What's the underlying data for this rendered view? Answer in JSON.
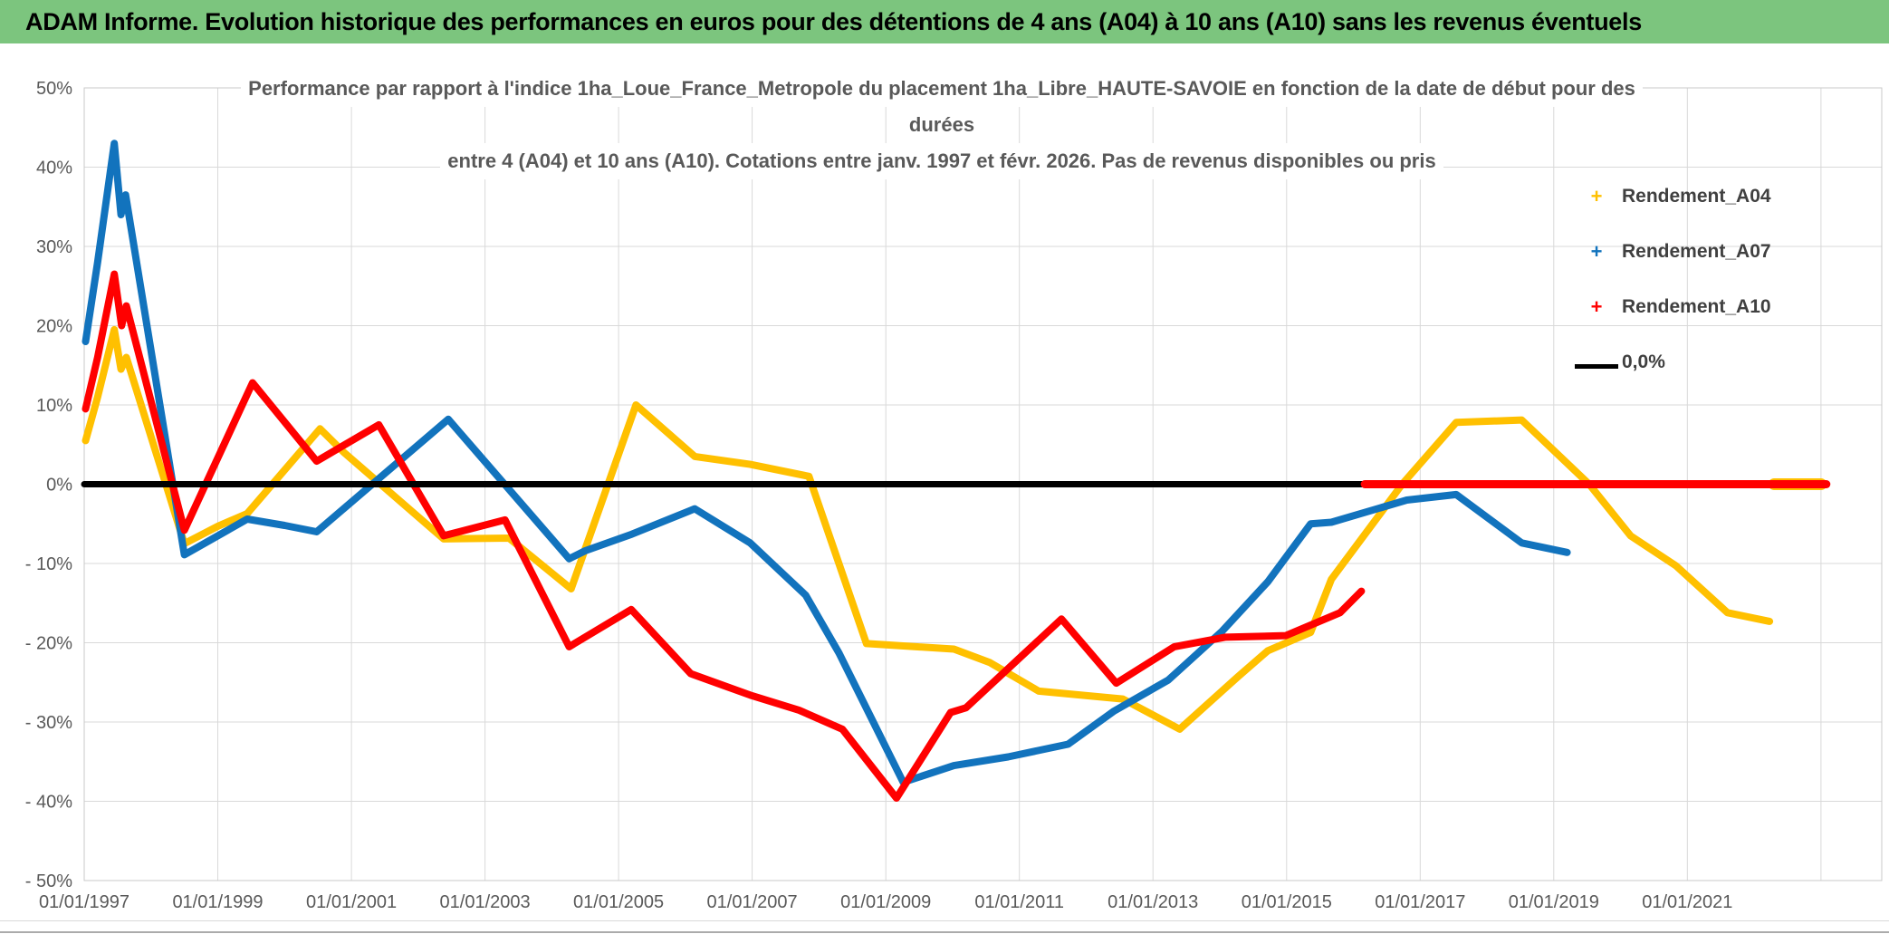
{
  "banner": {
    "title": "ADAM Informe. Evolution historique des performances en euros pour des détentions de 4 ans (A04) à 10 ans (A10) sans les revenus éventuels",
    "bg_color": "#7CC57E"
  },
  "frame": {
    "accent_color": "#EFAF35"
  },
  "chart_data": {
    "type": "line",
    "title_lines": [
      "Performance par rapport à l'indice 1ha_Loue_France_Metropole  du placement 1ha_Libre_HAUTE-SAVOIE en fonction de la date de début pour des",
      "durées",
      "entre 4 (A04) et 10 ans (A10). Cotations entre janv. 1997 et févr. 2026. Pas de revenus disponibles ou pris"
    ],
    "x_unit": "date_decimal_year",
    "y_unit": "percent",
    "x_axis_range_dates": [
      1997.0,
      2023.91
    ],
    "y_axis_range_pct": [
      -50,
      50
    ],
    "grid": true,
    "legend_position": "right-top",
    "x_tick_labels": [
      "01/01/1997",
      "01/01/1999",
      "01/01/2001",
      "01/01/2003",
      "01/01/2005",
      "01/01/2007",
      "01/01/2009",
      "01/01/2011",
      "01/01/2013",
      "01/01/2015",
      "01/01/2017",
      "01/01/2019",
      "01/01/2021"
    ],
    "x_tick_dates": [
      1997,
      1999,
      2001,
      2003,
      2005,
      2007,
      2009,
      2011,
      2013,
      2015,
      2017,
      2019,
      2021
    ],
    "x_gridline_dates": [
      1997,
      1999,
      2001,
      2003,
      2005,
      2007,
      2009,
      2011,
      2013,
      2015,
      2017,
      2019,
      2021,
      2023
    ],
    "y_tick_labels": [
      "50%",
      "40%",
      "30%",
      "20%",
      "10%",
      "0%",
      "- 10%",
      "- 20%",
      "- 30%",
      "- 40%",
      "- 50%"
    ],
    "y_tick_values": [
      50,
      40,
      30,
      20,
      10,
      0,
      -10,
      -20,
      -30,
      -40,
      -50
    ],
    "legend": [
      {
        "label": "Rendement_A04",
        "marker": "plus",
        "color": "#FFC000"
      },
      {
        "label": "Rendement_A07",
        "marker": "plus",
        "color": "#1273BD"
      },
      {
        "label": "Rendement_A10",
        "marker": "plus",
        "color": "#FF0000"
      },
      {
        "label": "0,0%",
        "marker": "line",
        "color": "#000000"
      }
    ],
    "series": [
      {
        "name": "Rendement_A04",
        "color": "#FFC000",
        "points": [
          [
            1997.02,
            5.5
          ],
          [
            1997.2,
            11
          ],
          [
            1997.45,
            19.5
          ],
          [
            1997.55,
            14.5
          ],
          [
            1997.63,
            16
          ],
          [
            1998.5,
            -7.5
          ],
          [
            1999.0,
            -5.3
          ],
          [
            1999.44,
            -3.7
          ],
          [
            2000.53,
            7.0
          ],
          [
            2000.89,
            4.0
          ],
          [
            2002.38,
            -6.9
          ],
          [
            2003.36,
            -6.8
          ],
          [
            2004.29,
            -13.2
          ],
          [
            2005.26,
            10.0
          ],
          [
            2006.14,
            3.5
          ],
          [
            2006.97,
            2.5
          ],
          [
            2007.85,
            1.0
          ],
          [
            2008.71,
            -20.1
          ],
          [
            2010.02,
            -20.8
          ],
          [
            2010.56,
            -22.5
          ],
          [
            2011.29,
            -26.1
          ],
          [
            2012.55,
            -27.1
          ],
          [
            2013.4,
            -30.9
          ],
          [
            2014.27,
            -24.3
          ],
          [
            2014.72,
            -21.0
          ],
          [
            2015.36,
            -18.7
          ],
          [
            2015.67,
            -12.0
          ],
          [
            2016.73,
            0.0
          ],
          [
            2017.54,
            7.8
          ],
          [
            2018.52,
            8.1
          ],
          [
            2019.53,
            0.0
          ],
          [
            2020.15,
            -6.5
          ],
          [
            2020.83,
            -10.3
          ],
          [
            2021.6,
            -16.2
          ],
          [
            2022.23,
            -17.3
          ]
        ],
        "placeholder_zero_segment": [
          2022.3,
          2023.0
        ]
      },
      {
        "name": "Rendement_A07",
        "color": "#1273BD",
        "points": [
          [
            1997.02,
            18
          ],
          [
            1997.2,
            28
          ],
          [
            1997.45,
            43
          ],
          [
            1997.55,
            34
          ],
          [
            1997.62,
            36.5
          ],
          [
            1998.5,
            -8.9
          ],
          [
            1999.44,
            -4.4
          ],
          [
            2000.0,
            -5.2
          ],
          [
            2000.48,
            -6.0
          ],
          [
            2002.45,
            8.2
          ],
          [
            2004.26,
            -9.4
          ],
          [
            2004.5,
            -8.4
          ],
          [
            2005.2,
            -6.3
          ],
          [
            2006.14,
            -3.1
          ],
          [
            2006.97,
            -7.4
          ],
          [
            2007.8,
            -14.0
          ],
          [
            2008.3,
            -21.3
          ],
          [
            2009.26,
            -37.6
          ],
          [
            2010.02,
            -35.5
          ],
          [
            2010.83,
            -34.4
          ],
          [
            2011.73,
            -32.8
          ],
          [
            2012.42,
            -28.6
          ],
          [
            2013.23,
            -24.7
          ],
          [
            2014.04,
            -18.5
          ],
          [
            2014.72,
            -12.3
          ],
          [
            2015.36,
            -5.0
          ],
          [
            2015.67,
            -4.8
          ],
          [
            2016.8,
            -2.0
          ],
          [
            2017.54,
            -1.3
          ],
          [
            2018.52,
            -7.4
          ],
          [
            2019.2,
            -8.6
          ]
        ]
      },
      {
        "name": "Rendement_A10",
        "color": "#FF0000",
        "points": [
          [
            1997.02,
            9.5
          ],
          [
            1997.2,
            16
          ],
          [
            1997.45,
            26.5
          ],
          [
            1997.56,
            20
          ],
          [
            1997.63,
            22.5
          ],
          [
            1998.5,
            -5.8
          ],
          [
            1999.52,
            12.8
          ],
          [
            2000.48,
            2.9
          ],
          [
            2001.41,
            7.5
          ],
          [
            2002.38,
            -6.5
          ],
          [
            2003.3,
            -4.5
          ],
          [
            2004.26,
            -20.5
          ],
          [
            2005.19,
            -15.8
          ],
          [
            2006.08,
            -23.9
          ],
          [
            2006.97,
            -26.6
          ],
          [
            2007.7,
            -28.5
          ],
          [
            2008.35,
            -30.9
          ],
          [
            2009.16,
            -39.6
          ],
          [
            2009.97,
            -28.8
          ],
          [
            2010.2,
            -28.2
          ],
          [
            2011.63,
            -17.0
          ],
          [
            2012.45,
            -25.1
          ],
          [
            2013.32,
            -20.5
          ],
          [
            2014.08,
            -19.3
          ],
          [
            2014.99,
            -19.1
          ],
          [
            2015.8,
            -16.2
          ],
          [
            2016.12,
            -13.5
          ]
        ],
        "placeholder_zero_segment": [
          2016.17,
          2023.08
        ]
      },
      {
        "name": "0,0%",
        "color": "#000000",
        "points": [
          [
            1997.0,
            0
          ],
          [
            2023.08,
            0
          ]
        ]
      }
    ],
    "colors": {
      "gridline": "#D9D9D9",
      "plot_border": "#C9C9C9",
      "axis_text": "#595959",
      "title_text": "#595959"
    }
  }
}
